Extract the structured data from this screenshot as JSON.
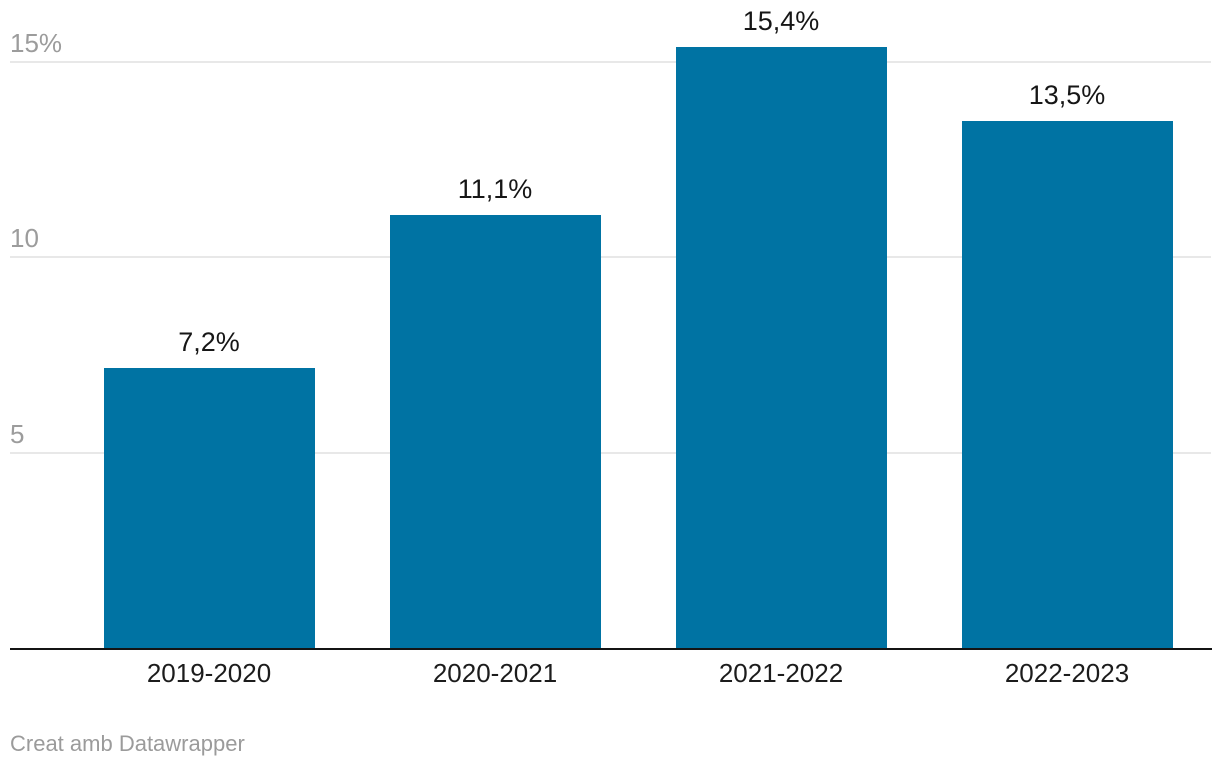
{
  "chart_data": {
    "type": "bar",
    "title": "",
    "xlabel": "",
    "ylabel": "",
    "categories": [
      "2019-2020",
      "2020-2021",
      "2021-2022",
      "2022-2023"
    ],
    "values": [
      7.2,
      11.1,
      15.4,
      13.5
    ],
    "value_labels": [
      "7,2%",
      "11,1%",
      "15,4%",
      "13,5%"
    ],
    "y_ticks": [
      {
        "value": 5,
        "label": "5"
      },
      {
        "value": 10,
        "label": "10"
      },
      {
        "value": 15,
        "label": "15%"
      }
    ],
    "ylim": [
      0,
      16.6
    ],
    "grid": true,
    "legend": false,
    "bar_color": "#0073a3",
    "gridline_color": "#e8e8e8",
    "tick_label_color": "#9c9c9c",
    "data_label_color": "#161616",
    "axis_label_color": "#1c1c1c",
    "baseline_color": "#141414",
    "attribution": "Creat amb Datawrapper"
  }
}
